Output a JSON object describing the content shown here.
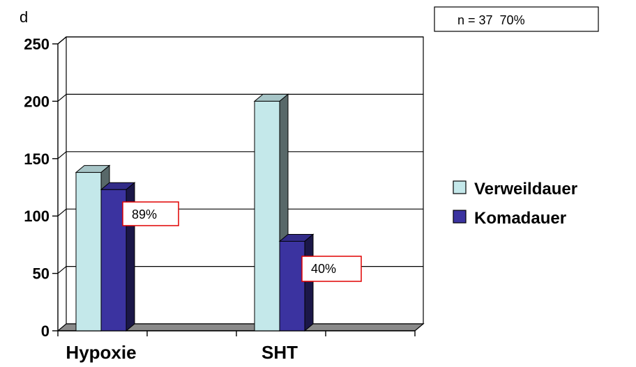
{
  "chart_data": {
    "type": "bar",
    "ylabel": "d",
    "categories": [
      "Hypoxie",
      "SHT"
    ],
    "series": [
      {
        "name": "Verweildauer",
        "values": [
          138,
          200
        ],
        "color": "#C4E8EA"
      },
      {
        "name": "Komadauer",
        "values": [
          123,
          78
        ],
        "color": "#3B33A0"
      }
    ],
    "ylim": [
      0,
      250
    ],
    "yticks": [
      0,
      50,
      100,
      150,
      200,
      250
    ],
    "grid": true,
    "legend": "right",
    "annotations": [
      "89%",
      "40%"
    ],
    "note": "n = 37  70%"
  }
}
